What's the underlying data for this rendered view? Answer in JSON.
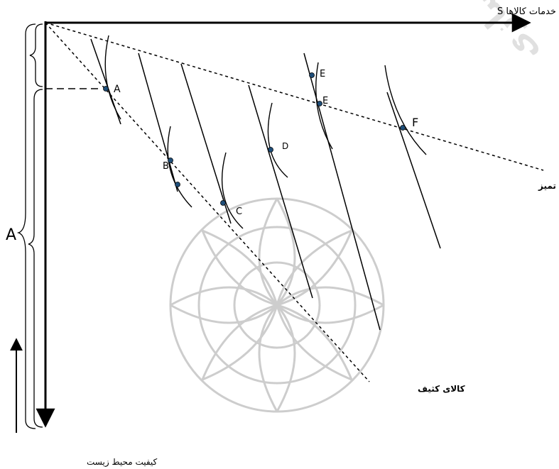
{
  "axes": {
    "x_label": "خدمات کالاها S",
    "y_label": "کیفیت محیط زیست",
    "left_label": "A"
  },
  "lines": {
    "clean_label": "کالایی تمیز",
    "dirty_label": "کالای کثیف"
  },
  "points": {
    "A": "A",
    "B": "B",
    "C": "C",
    "D": "D",
    "E_upper": "E",
    "E_lower": "E",
    "F": "F"
  },
  "watermark": {
    "text": "فصلنامه تحقیقات مدل سازی"
  },
  "colors": {
    "point_fill": "#1f4e79",
    "line": "#000000",
    "watermark": "#cccccc"
  }
}
